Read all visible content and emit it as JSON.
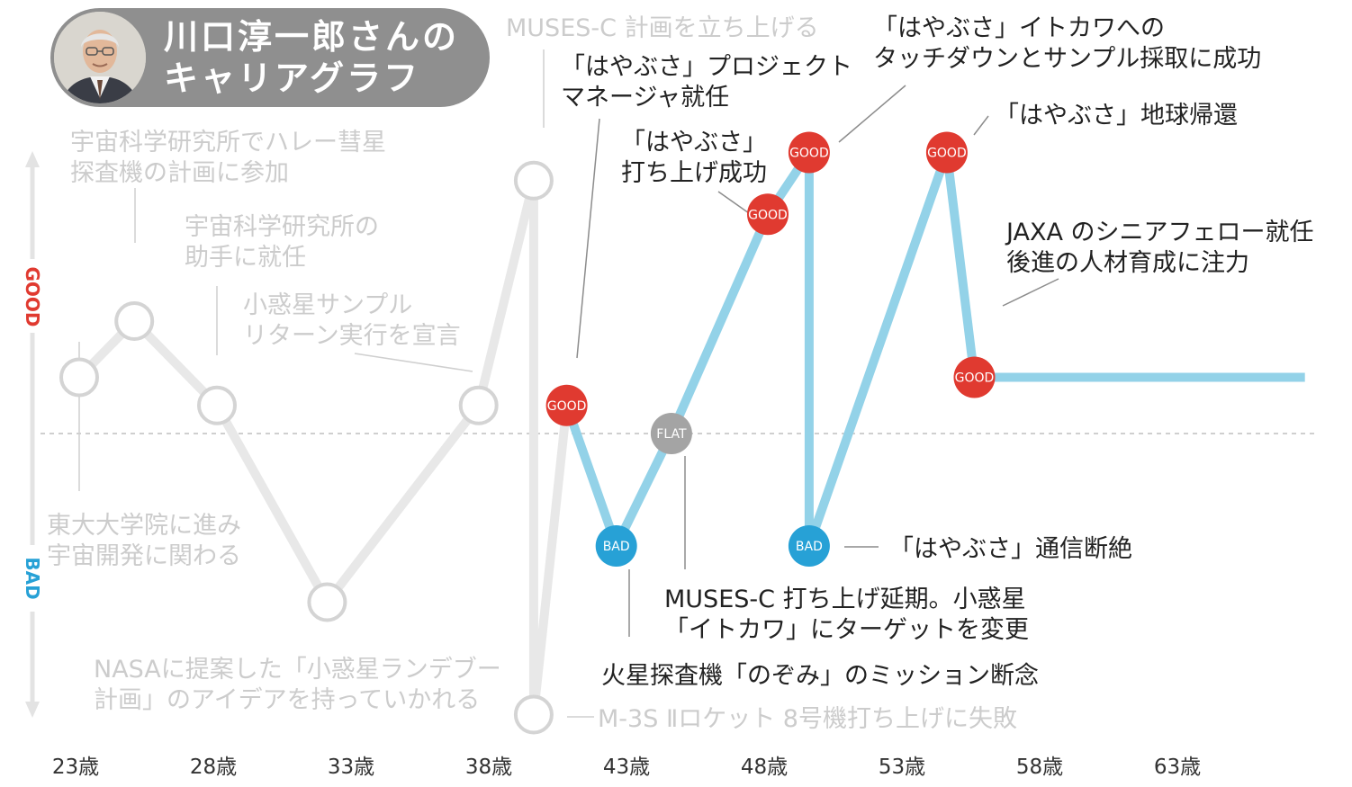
{
  "header": {
    "title_line1": "川口淳一郎さんの",
    "title_line2": "キャリアグラフ"
  },
  "y_axis": {
    "top_label": "GOOD",
    "bottom_label": "BAD"
  },
  "colors": {
    "past_line": "#e8e8e8",
    "past_text": "#cccccc",
    "recent_line": "#93d2e8",
    "good": "#e03a30",
    "bad": "#27a1d6",
    "flat": "#a4a4a4",
    "text": "#222222",
    "header_bg": "#8f8f8f"
  },
  "chart_data": {
    "type": "line",
    "x_unit": "歳",
    "xlim": [
      22,
      68
    ],
    "ylim": [
      -5,
      5
    ],
    "x_ticks": [
      23,
      28,
      33,
      38,
      43,
      48,
      53,
      58,
      63
    ],
    "x_tick_labels": [
      "23歳",
      "28歳",
      "33歳",
      "38歳",
      "43歳",
      "48歳",
      "53歳",
      "58歳",
      "63歳"
    ],
    "y_ticks": [],
    "legend": "none",
    "series": [
      {
        "points": [
          {
            "x": 23,
            "y": 1
          },
          {
            "x": 25,
            "y": 2
          },
          {
            "x": 28,
            "y": 0.5
          },
          {
            "x": 32,
            "y": -3
          },
          {
            "x": 37.5,
            "y": 0.5
          },
          {
            "x": 39.5,
            "y": 4.5
          },
          {
            "x": 39.5,
            "y": -5
          }
        ],
        "ends_at": {
          "x": 40.7,
          "y": 0.5
        }
      },
      {
        "points": [
          {
            "x": 40.7,
            "y": 0.5,
            "state": "GOOD"
          },
          {
            "x": 42.5,
            "y": -2,
            "state": "BAD"
          },
          {
            "x": 44.5,
            "y": 0,
            "state": "FLAT"
          },
          {
            "x": 48,
            "y": 3.9,
            "state": "GOOD"
          },
          {
            "x": 49.5,
            "y": 5,
            "state": "GOOD"
          },
          {
            "x": 49.5,
            "y": -2,
            "state": "BAD"
          },
          {
            "x": 54.5,
            "y": 5,
            "state": "GOOD"
          },
          {
            "x": 55.5,
            "y": 1,
            "state": "GOOD"
          }
        ],
        "extends_to": {
          "x": 67.5,
          "y": 1
        }
      }
    ],
    "annotations": [
      {
        "lines": [
          "東大大学院に進み",
          "宇宙開発に関わる"
        ]
      },
      {
        "lines": [
          "宇宙科学研究所でハレー彗星",
          "探査機の計画に参加"
        ]
      },
      {
        "lines": [
          "宇宙科学研究所の",
          "助手に就任"
        ]
      },
      {
        "lines": [
          "小惑星サンプル",
          "リターン実行を宣言"
        ]
      },
      {
        "lines": [
          "NASAに提案した「小惑星ランデブー",
          "計画」のアイデアを持っていかれる"
        ]
      },
      {
        "lines": [
          "MUSES-C 計画を立ち上げる"
        ]
      },
      {
        "lines": [
          "M-3S Ⅱロケット 8号機打ち上げに失敗"
        ]
      },
      {
        "lines": [
          "「はやぶさ」プロジェクト",
          "マネージャ就任"
        ]
      },
      {
        "lines": [
          "火星探査機「のぞみ」のミッション断念"
        ]
      },
      {
        "lines": [
          "MUSES-C 打ち上げ延期。小惑星",
          "「イトカワ」にターゲットを変更"
        ]
      },
      {
        "lines": [
          "「はやぶさ」",
          "打ち上げ成功"
        ]
      },
      {
        "lines": [
          "「はやぶさ」イトカワへの",
          "タッチダウンとサンプル採取に成功"
        ]
      },
      {
        "lines": [
          "「はやぶさ」通信断絶"
        ]
      },
      {
        "lines": [
          "「はやぶさ」地球帰還"
        ]
      },
      {
        "lines": [
          "JAXA のシニアフェロー就任",
          "後進の人材育成に注力"
        ]
      }
    ]
  }
}
